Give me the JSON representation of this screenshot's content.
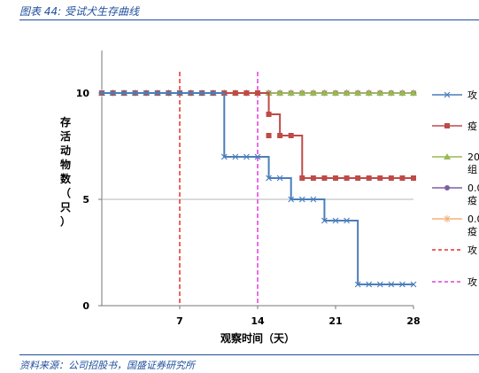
{
  "figure": {
    "title": "图表 44: 受试犬生存曲线",
    "source": "资料来源：公司招股书，国盛证券研究所"
  },
  "chart_data": {
    "type": "line",
    "xlabel": "观察时间（天）",
    "ylabel": "存活动物数（只）",
    "xlim": [
      0,
      28
    ],
    "ylim": [
      0,
      12
    ],
    "xticks": [
      7,
      14,
      21,
      28
    ],
    "yticks": [
      0,
      5,
      10
    ],
    "grid": "horizontal at y=5",
    "legend_position": "right",
    "series": [
      {
        "name": "攻",
        "color": "#4a7ebb",
        "marker": "x",
        "step": true,
        "x": [
          0,
          1,
          2,
          3,
          4,
          5,
          6,
          7,
          8,
          9,
          10,
          11,
          12,
          13,
          14,
          15,
          16,
          17,
          18,
          19,
          20,
          21,
          22,
          23,
          24,
          25,
          26,
          27,
          28
        ],
        "y": [
          10,
          10,
          10,
          10,
          10,
          10,
          10,
          10,
          10,
          10,
          10,
          7,
          7,
          7,
          7,
          6,
          6,
          5,
          5,
          5,
          4,
          4,
          4,
          1,
          1,
          1,
          1,
          1,
          1
        ]
      },
      {
        "name": "疫",
        "color": "#be4b48",
        "marker": "square",
        "step": true,
        "x": [
          0,
          1,
          2,
          3,
          4,
          5,
          6,
          7,
          8,
          9,
          10,
          11,
          12,
          13,
          14,
          15,
          16,
          17,
          18,
          19,
          20,
          21,
          22,
          23,
          24,
          25,
          26,
          27,
          28
        ],
        "y": [
          10,
          10,
          10,
          10,
          10,
          10,
          10,
          10,
          10,
          10,
          10,
          10,
          10,
          10,
          10,
          9,
          8,
          8,
          6,
          6,
          6,
          6,
          6,
          6,
          6,
          6,
          6,
          6,
          6
        ],
        "x_extra": [
          15.0
        ],
        "y_extra": [
          8
        ]
      },
      {
        "name": "20… 组",
        "color": "#98b954",
        "marker": "triangle",
        "step": false,
        "x": [
          0,
          1,
          2,
          3,
          4,
          5,
          6,
          7,
          8,
          9,
          10,
          11,
          12,
          13,
          14,
          15,
          16,
          17,
          18,
          19,
          20,
          21,
          22,
          23,
          24,
          25,
          26,
          27,
          28
        ],
        "y": [
          10,
          10,
          10,
          10,
          10,
          10,
          10,
          10,
          10,
          10,
          10,
          10,
          10,
          10,
          10,
          10,
          10,
          10,
          10,
          10,
          10,
          10,
          10,
          10,
          10,
          10,
          10,
          10,
          10
        ]
      },
      {
        "name": "0.0… 疫",
        "color": "#7d60a0",
        "marker": "circle",
        "step": false,
        "x": [
          0,
          1,
          2,
          3,
          4,
          5,
          6,
          7,
          8,
          9,
          10,
          11,
          12,
          13,
          14,
          15,
          16,
          17,
          18,
          19,
          20,
          21,
          22,
          23,
          24,
          25,
          26,
          27,
          28
        ],
        "y": [
          10,
          10,
          10,
          10,
          10,
          10,
          10,
          10,
          10,
          10,
          10,
          10,
          10,
          10,
          10,
          10,
          10,
          10,
          10,
          10,
          10,
          10,
          10,
          10,
          10,
          10,
          10,
          10,
          10
        ]
      },
      {
        "name": "0.0… 疫",
        "color": "#f3b27a",
        "marker": "star",
        "step": false,
        "x": [
          0,
          1,
          2,
          3,
          4,
          5,
          6,
          7,
          8,
          9,
          10,
          11,
          12,
          13,
          14,
          15,
          16,
          17,
          18,
          19,
          20,
          21,
          22,
          23,
          24,
          25,
          26,
          27,
          28
        ],
        "y": [
          10,
          10,
          10,
          10,
          10,
          10,
          10,
          10,
          10,
          10,
          10,
          10,
          10,
          10,
          10,
          10,
          10,
          10,
          10,
          10,
          10,
          10,
          10,
          10,
          10,
          10,
          10,
          10,
          10
        ]
      }
    ],
    "reference_lines": [
      {
        "name": "攻",
        "x": 7,
        "color": "#e8302f",
        "style": "dashed"
      },
      {
        "name": "攻",
        "x": 14,
        "color": "#e23de0",
        "style": "dashed"
      }
    ],
    "legend": [
      {
        "label": "攻",
        "color": "#4a7ebb",
        "marker": "x",
        "line": "solid"
      },
      {
        "label": "疫",
        "color": "#be4b48",
        "marker": "square",
        "line": "solid"
      },
      {
        "label": "20",
        "label2": "组",
        "color": "#98b954",
        "marker": "triangle",
        "line": "solid"
      },
      {
        "label": "0.0",
        "label2": "疫",
        "color": "#7d60a0",
        "marker": "circle",
        "line": "solid"
      },
      {
        "label": "0.0",
        "label2": "疫",
        "color": "#f3b27a",
        "marker": "star",
        "line": "solid"
      },
      {
        "label": "攻",
        "color": "#e8302f",
        "marker": "none",
        "line": "dashed"
      },
      {
        "label": "攻",
        "color": "#e23de0",
        "marker": "none",
        "line": "dashed"
      }
    ]
  }
}
